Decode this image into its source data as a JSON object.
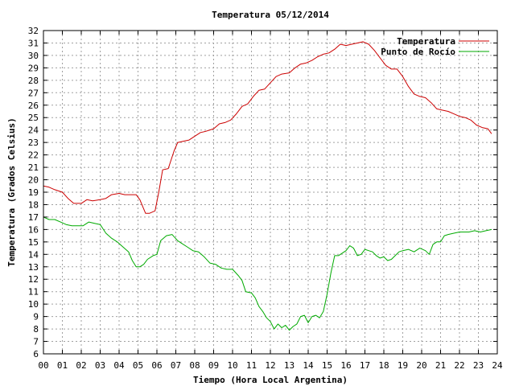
{
  "chart_data": {
    "type": "line",
    "title": "Temperatura 05/12/2014",
    "xlabel": "Tiempo (Hora Local Argentina)",
    "ylabel": "Temperatura (Grados Celsius)",
    "xlim": [
      0,
      24
    ],
    "ylim": [
      6,
      32
    ],
    "x_ticks": [
      "00",
      "01",
      "02",
      "03",
      "04",
      "05",
      "06",
      "07",
      "08",
      "09",
      "10",
      "11",
      "12",
      "13",
      "14",
      "15",
      "16",
      "17",
      "18",
      "19",
      "20",
      "21",
      "22",
      "23",
      "24"
    ],
    "y_ticks": [
      6,
      7,
      8,
      9,
      10,
      11,
      12,
      13,
      14,
      15,
      16,
      17,
      18,
      19,
      20,
      21,
      22,
      23,
      24,
      25,
      26,
      27,
      28,
      29,
      30,
      31,
      32
    ],
    "grid": true,
    "legend_position": "top-right",
    "series": [
      {
        "name": "Temperatura",
        "color": "#cc0000",
        "points": [
          [
            0,
            19.5
          ],
          [
            0.3,
            19.4
          ],
          [
            0.6,
            19.2
          ],
          [
            1.0,
            19.0
          ],
          [
            1.3,
            18.5
          ],
          [
            1.6,
            18.1
          ],
          [
            2.0,
            18.1
          ],
          [
            2.3,
            18.4
          ],
          [
            2.6,
            18.3
          ],
          [
            3.0,
            18.4
          ],
          [
            3.3,
            18.5
          ],
          [
            3.6,
            18.8
          ],
          [
            4.0,
            18.9
          ],
          [
            4.3,
            18.8
          ],
          [
            4.6,
            18.8
          ],
          [
            4.9,
            18.8
          ],
          [
            5.1,
            18.4
          ],
          [
            5.4,
            17.3
          ],
          [
            5.6,
            17.3
          ],
          [
            5.9,
            17.5
          ],
          [
            6.1,
            19.0
          ],
          [
            6.3,
            20.8
          ],
          [
            6.6,
            20.9
          ],
          [
            6.9,
            22.3
          ],
          [
            7.1,
            23.0
          ],
          [
            7.4,
            23.1
          ],
          [
            7.7,
            23.2
          ],
          [
            8.0,
            23.5
          ],
          [
            8.3,
            23.8
          ],
          [
            8.6,
            23.9
          ],
          [
            9.0,
            24.1
          ],
          [
            9.3,
            24.5
          ],
          [
            9.6,
            24.6
          ],
          [
            9.9,
            24.8
          ],
          [
            10.2,
            25.3
          ],
          [
            10.5,
            25.9
          ],
          [
            10.8,
            26.1
          ],
          [
            11.1,
            26.7
          ],
          [
            11.4,
            27.2
          ],
          [
            11.7,
            27.3
          ],
          [
            12.0,
            27.8
          ],
          [
            12.3,
            28.3
          ],
          [
            12.6,
            28.5
          ],
          [
            13.0,
            28.6
          ],
          [
            13.3,
            29.0
          ],
          [
            13.6,
            29.3
          ],
          [
            13.9,
            29.4
          ],
          [
            14.2,
            29.6
          ],
          [
            14.5,
            29.9
          ],
          [
            14.8,
            30.1
          ],
          [
            15.1,
            30.2
          ],
          [
            15.4,
            30.5
          ],
          [
            15.7,
            30.9
          ],
          [
            16.0,
            30.8
          ],
          [
            16.3,
            30.9
          ],
          [
            16.6,
            31.0
          ],
          [
            16.9,
            31.1
          ],
          [
            17.2,
            30.9
          ],
          [
            17.5,
            30.4
          ],
          [
            17.8,
            29.8
          ],
          [
            18.1,
            29.2
          ],
          [
            18.4,
            28.9
          ],
          [
            18.7,
            28.9
          ],
          [
            19.0,
            28.3
          ],
          [
            19.3,
            27.5
          ],
          [
            19.6,
            26.9
          ],
          [
            19.9,
            26.7
          ],
          [
            20.2,
            26.6
          ],
          [
            20.5,
            26.2
          ],
          [
            20.8,
            25.7
          ],
          [
            21.1,
            25.6
          ],
          [
            21.4,
            25.5
          ],
          [
            21.7,
            25.3
          ],
          [
            22.0,
            25.1
          ],
          [
            22.3,
            25.0
          ],
          [
            22.6,
            24.8
          ],
          [
            22.9,
            24.4
          ],
          [
            23.2,
            24.2
          ],
          [
            23.5,
            24.1
          ],
          [
            23.7,
            23.7
          ]
        ]
      },
      {
        "name": "Punto de Rocío",
        "color": "#00aa00",
        "points": [
          [
            0,
            17.0
          ],
          [
            0.3,
            16.8
          ],
          [
            0.6,
            16.8
          ],
          [
            0.9,
            16.6
          ],
          [
            1.2,
            16.4
          ],
          [
            1.5,
            16.3
          ],
          [
            1.8,
            16.3
          ],
          [
            2.1,
            16.3
          ],
          [
            2.4,
            16.6
          ],
          [
            2.7,
            16.5
          ],
          [
            3.0,
            16.4
          ],
          [
            3.3,
            15.7
          ],
          [
            3.6,
            15.3
          ],
          [
            3.9,
            15.0
          ],
          [
            4.2,
            14.6
          ],
          [
            4.5,
            14.2
          ],
          [
            4.7,
            13.5
          ],
          [
            4.9,
            13.0
          ],
          [
            5.1,
            13.0
          ],
          [
            5.3,
            13.2
          ],
          [
            5.5,
            13.6
          ],
          [
            5.8,
            13.9
          ],
          [
            6.0,
            14.0
          ],
          [
            6.2,
            15.1
          ],
          [
            6.5,
            15.5
          ],
          [
            6.8,
            15.6
          ],
          [
            7.1,
            15.1
          ],
          [
            7.3,
            14.9
          ],
          [
            7.6,
            14.6
          ],
          [
            7.9,
            14.3
          ],
          [
            8.2,
            14.2
          ],
          [
            8.5,
            13.8
          ],
          [
            8.8,
            13.3
          ],
          [
            9.1,
            13.2
          ],
          [
            9.4,
            12.9
          ],
          [
            9.7,
            12.8
          ],
          [
            10.0,
            12.8
          ],
          [
            10.3,
            12.3
          ],
          [
            10.5,
            11.9
          ],
          [
            10.7,
            11.0
          ],
          [
            11.0,
            10.9
          ],
          [
            11.2,
            10.5
          ],
          [
            11.4,
            9.8
          ],
          [
            11.6,
            9.4
          ],
          [
            11.8,
            8.9
          ],
          [
            12.0,
            8.6
          ],
          [
            12.2,
            8.0
          ],
          [
            12.4,
            8.4
          ],
          [
            12.6,
            8.1
          ],
          [
            12.8,
            8.3
          ],
          [
            13.0,
            7.9
          ],
          [
            13.2,
            8.2
          ],
          [
            13.4,
            8.4
          ],
          [
            13.6,
            9.0
          ],
          [
            13.8,
            9.1
          ],
          [
            14.0,
            8.5
          ],
          [
            14.2,
            9.0
          ],
          [
            14.4,
            9.1
          ],
          [
            14.6,
            8.9
          ],
          [
            14.8,
            9.4
          ],
          [
            15.0,
            10.8
          ],
          [
            15.2,
            12.5
          ],
          [
            15.4,
            13.9
          ],
          [
            15.6,
            13.9
          ],
          [
            15.8,
            14.1
          ],
          [
            16.0,
            14.3
          ],
          [
            16.2,
            14.7
          ],
          [
            16.4,
            14.5
          ],
          [
            16.6,
            13.9
          ],
          [
            16.8,
            14.0
          ],
          [
            17.0,
            14.4
          ],
          [
            17.2,
            14.3
          ],
          [
            17.4,
            14.2
          ],
          [
            17.6,
            13.9
          ],
          [
            17.8,
            13.7
          ],
          [
            18.0,
            13.8
          ],
          [
            18.2,
            13.5
          ],
          [
            18.4,
            13.6
          ],
          [
            18.6,
            13.9
          ],
          [
            18.8,
            14.2
          ],
          [
            19.0,
            14.3
          ],
          [
            19.3,
            14.4
          ],
          [
            19.6,
            14.2
          ],
          [
            19.9,
            14.5
          ],
          [
            20.2,
            14.3
          ],
          [
            20.4,
            14.0
          ],
          [
            20.6,
            14.8
          ],
          [
            20.8,
            15.0
          ],
          [
            21.0,
            15.0
          ],
          [
            21.2,
            15.5
          ],
          [
            21.4,
            15.6
          ],
          [
            21.7,
            15.7
          ],
          [
            22.0,
            15.8
          ],
          [
            22.2,
            15.8
          ],
          [
            22.5,
            15.8
          ],
          [
            22.8,
            15.9
          ],
          [
            23.1,
            15.8
          ],
          [
            23.4,
            15.9
          ],
          [
            23.7,
            16.0
          ]
        ]
      }
    ]
  }
}
